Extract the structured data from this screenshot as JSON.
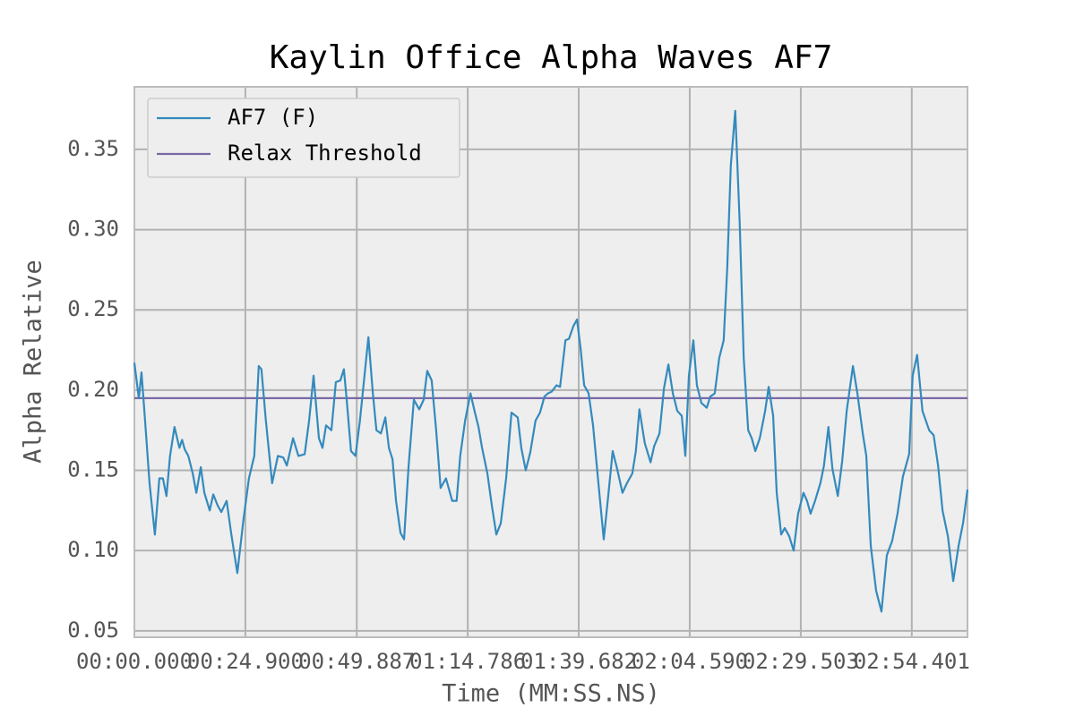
{
  "chart_data": {
    "type": "line",
    "title": "Kaylin Office Alpha Waves AF7",
    "x_label": "Time (MM:SS.NS)",
    "y_label": "Alpha Relative",
    "x": [
      0,
      1.0,
      1.6,
      2.4,
      3.4,
      4.6,
      5.6,
      6.4,
      7.2,
      8.0,
      9.0,
      10.1,
      10.7,
      11.3,
      12.1,
      13.1,
      13.9,
      14.9,
      15.7,
      16.9,
      17.7,
      18.7,
      19.5,
      20.7,
      21.7,
      23.1,
      24.5,
      25.7,
      26.9,
      27.9,
      28.5,
      29.5,
      30.9,
      32.2,
      33.4,
      34.2,
      35.6,
      36.8,
      38.2,
      39.2,
      40.2,
      41.4,
      42.2,
      43.0,
      44.2,
      45.2,
      46.2,
      47.0,
      47.6,
      48.6,
      49.6,
      50.6,
      52.5,
      53.5,
      54.3,
      55.3,
      56.3,
      57.1,
      57.9,
      58.7,
      59.7,
      60.5,
      61.5,
      62.7,
      63.9,
      64.9,
      65.7,
      66.7,
      67.7,
      68.7,
      69.9,
      71.3,
      72.3,
      73.1,
      74.2,
      75.4,
      76.4,
      77.2,
      78.0,
      79.2,
      80.2,
      81.2,
      82.2,
      83.4,
      84.6,
      86.0,
      86.8,
      87.8,
      88.8,
      90.0,
      91.0,
      92.0,
      92.8,
      93.6,
      94.7,
      95.5,
      96.7,
      97.5,
      98.5,
      99.3,
      100.1,
      100.9,
      101.9,
      102.9,
      104.1,
      105.3,
      106.3,
      107.3,
      108.3,
      109.5,
      110.5,
      111.7,
      112.5,
      113.3,
      114.5,
      115.8,
      116.6,
      117.8,
      118.8,
      119.8,
      120.8,
      121.8,
      122.8,
      123.6,
      124.4,
      125.4,
      126.2,
      127.2,
      128.4,
      129.2,
      130.2,
      131.2,
      132.2,
      133.0,
      133.8,
      134.8,
      135.8,
      136.7,
      137.7,
      138.5,
      139.3,
      140.3,
      141.5,
      142.3,
      143.3,
      144.1,
      145.1,
      145.9,
      146.9,
      147.9,
      148.9,
      150.1,
      150.9,
      151.7,
      152.7,
      153.9,
      154.7,
      155.7,
      156.6,
      157.8,
      158.8,
      159.8,
      161.2,
      162.2,
      163.4,
      164.2,
      165.2,
      166.4,
      167.6,
      168.8,
      170.0,
      171.2,
      172.4,
      173.8,
      174.6,
      175.6,
      176.8,
      178.3,
      179.3,
      180.3,
      181.3,
      182.5,
      183.7,
      184.9,
      185.9,
      186.9
    ],
    "series": [
      {
        "name": "AF7 (F)",
        "color": "#348abd",
        "values": [
          0.217,
          0.195,
          0.211,
          0.181,
          0.142,
          0.11,
          0.145,
          0.145,
          0.134,
          0.159,
          0.177,
          0.164,
          0.169,
          0.163,
          0.159,
          0.148,
          0.136,
          0.152,
          0.136,
          0.125,
          0.135,
          0.128,
          0.124,
          0.131,
          0.111,
          0.086,
          0.12,
          0.145,
          0.159,
          0.215,
          0.213,
          0.181,
          0.142,
          0.159,
          0.158,
          0.153,
          0.17,
          0.159,
          0.16,
          0.181,
          0.209,
          0.17,
          0.164,
          0.178,
          0.175,
          0.205,
          0.206,
          0.213,
          0.195,
          0.162,
          0.159,
          0.181,
          0.233,
          0.198,
          0.175,
          0.173,
          0.183,
          0.164,
          0.157,
          0.131,
          0.111,
          0.107,
          0.152,
          0.194,
          0.188,
          0.194,
          0.212,
          0.206,
          0.175,
          0.139,
          0.145,
          0.131,
          0.131,
          0.159,
          0.181,
          0.198,
          0.186,
          0.177,
          0.164,
          0.148,
          0.128,
          0.11,
          0.117,
          0.145,
          0.186,
          0.183,
          0.164,
          0.15,
          0.161,
          0.181,
          0.186,
          0.196,
          0.198,
          0.199,
          0.203,
          0.202,
          0.231,
          0.232,
          0.24,
          0.244,
          0.226,
          0.203,
          0.198,
          0.178,
          0.142,
          0.107,
          0.134,
          0.162,
          0.151,
          0.136,
          0.142,
          0.148,
          0.162,
          0.188,
          0.167,
          0.155,
          0.165,
          0.173,
          0.201,
          0.216,
          0.198,
          0.187,
          0.184,
          0.159,
          0.209,
          0.231,
          0.203,
          0.192,
          0.189,
          0.196,
          0.198,
          0.22,
          0.231,
          0.276,
          0.34,
          0.374,
          0.304,
          0.22,
          0.175,
          0.17,
          0.162,
          0.17,
          0.187,
          0.202,
          0.184,
          0.136,
          0.11,
          0.114,
          0.109,
          0.1,
          0.123,
          0.136,
          0.131,
          0.123,
          0.131,
          0.142,
          0.153,
          0.177,
          0.151,
          0.134,
          0.156,
          0.187,
          0.215,
          0.198,
          0.173,
          0.159,
          0.103,
          0.075,
          0.062,
          0.097,
          0.106,
          0.123,
          0.146,
          0.16,
          0.209,
          0.222,
          0.187,
          0.175,
          0.172,
          0.153,
          0.125,
          0.109,
          0.081,
          0.103,
          0.117,
          0.138
        ]
      },
      {
        "name": "Relax Threshold",
        "color": "#7a68a6",
        "x": [
          0,
          186.9
        ],
        "values": [
          0.195,
          0.195
        ]
      }
    ],
    "xlim": [
      0,
      186.9
    ],
    "ylim": [
      0.046,
      0.389
    ],
    "xticks": [
      {
        "value": 0,
        "label": "00:00.000"
      },
      {
        "value": 24.9,
        "label": "00:24.900"
      },
      {
        "value": 49.887,
        "label": "00:49.887"
      },
      {
        "value": 74.786,
        "label": "01:14.786"
      },
      {
        "value": 99.682,
        "label": "01:39.682"
      },
      {
        "value": 124.59,
        "label": "02:04.590"
      },
      {
        "value": 149.503,
        "label": "02:29.503"
      },
      {
        "value": 174.401,
        "label": "02:54.401"
      }
    ],
    "yticks": [
      0.05,
      {
        "value": 0.1,
        "label": "0.10"
      },
      0.15,
      {
        "value": 0.2,
        "label": "0.20"
      },
      0.25,
      {
        "value": 0.3,
        "label": "0.30"
      },
      0.35
    ],
    "grid": true,
    "legend": "upper left"
  }
}
